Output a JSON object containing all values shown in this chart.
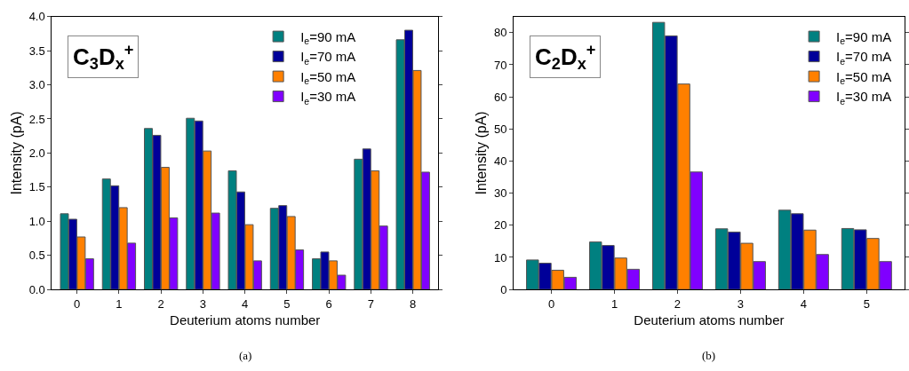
{
  "chart_data": [
    {
      "type": "bar",
      "xlabel": "Deuterium atoms number",
      "ylabel": "Intensity (pA)",
      "categories": [
        "0",
        "1",
        "2",
        "3",
        "4",
        "5",
        "6",
        "7",
        "8"
      ],
      "ylim": [
        0,
        4
      ],
      "yticks": [
        {
          "value": 0,
          "label": "0.0"
        },
        {
          "value": 0.5,
          "label": "0.5"
        },
        {
          "value": 1,
          "label": "1.0"
        },
        {
          "value": 1.5,
          "label": "1.5"
        },
        {
          "value": 2,
          "label": "2.0"
        },
        {
          "value": 2.5,
          "label": "2.5"
        },
        {
          "value": 3,
          "label": "3.0"
        },
        {
          "value": 3.5,
          "label": "3.5"
        },
        {
          "value": 4,
          "label": "4.0"
        }
      ],
      "legend": "top right",
      "annotations": [
        "C$_{3}$D$_{x}$$^{+}$",
        "(a)"
      ],
      "series": [
        {
          "name": "I$_{e}$=90 mA",
          "color": "#008080",
          "values": [
            1.11,
            1.62,
            2.36,
            2.51,
            1.74,
            1.19,
            0.45,
            1.91,
            3.66
          ]
        },
        {
          "name": "I$_{e}$=70 mA",
          "color": "#000099",
          "values": [
            1.03,
            1.52,
            2.26,
            2.47,
            1.43,
            1.23,
            0.55,
            2.06,
            3.8
          ]
        },
        {
          "name": "I$_{e}$=50 mA",
          "color": "#ff8000",
          "values": [
            0.77,
            1.2,
            1.79,
            2.03,
            0.95,
            1.07,
            0.42,
            1.74,
            3.21
          ]
        },
        {
          "name": "I$_{e}$=30 mA",
          "color": "#8000ff",
          "values": [
            0.45,
            0.68,
            1.05,
            1.12,
            0.42,
            0.58,
            0.21,
            0.93,
            1.72
          ]
        }
      ]
    },
    {
      "type": "bar",
      "xlabel": "Deuterium atoms number",
      "ylabel": "Intensity (pA)",
      "categories": [
        "0",
        "1",
        "2",
        "3",
        "4",
        "5"
      ],
      "ylim": [
        0,
        85
      ],
      "yticks": [
        0,
        10,
        20,
        30,
        40,
        50,
        60,
        70,
        80
      ],
      "legend": "top right",
      "annotations": [
        "C$_{2}$D$_{x}$$^{+}$",
        "(b)"
      ],
      "series": [
        {
          "name": "I$_{e}$=90 mA",
          "color": "#008080",
          "values": [
            9.2,
            14.8,
            83.2,
            18.9,
            24.7,
            19.0
          ]
        },
        {
          "name": "I$_{e}$=70 mA",
          "color": "#000099",
          "values": [
            8.2,
            13.7,
            79.0,
            17.9,
            23.6,
            18.6
          ]
        },
        {
          "name": "I$_{e}$=50 mA",
          "color": "#ff8000",
          "values": [
            6.0,
            9.8,
            64.0,
            14.4,
            18.5,
            15.9
          ]
        },
        {
          "name": "I$_{e}$=30 mA",
          "color": "#8000ff",
          "values": [
            3.8,
            6.3,
            36.6,
            8.7,
            10.9,
            8.7
          ]
        }
      ]
    }
  ]
}
